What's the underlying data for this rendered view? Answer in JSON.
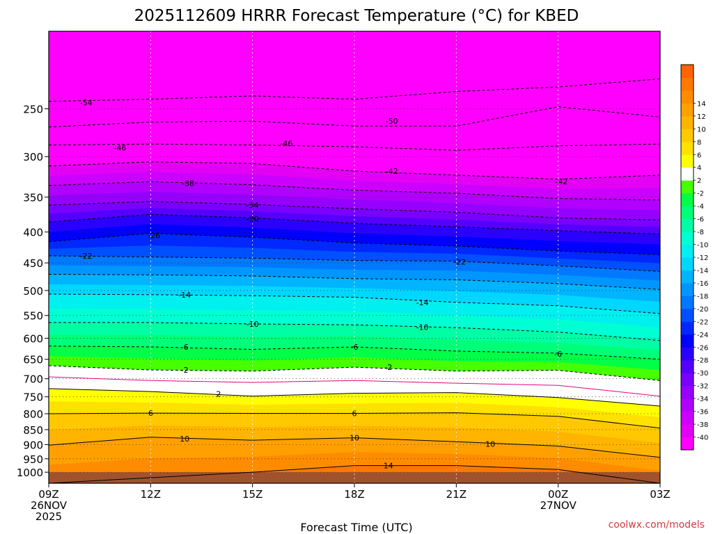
{
  "chart_data": {
    "type": "heatmap",
    "title": "2025112609 HRRR Forecast Temperature (°C) for KBED",
    "xlabel": "Forecast Time (UTC)",
    "ylabel": "",
    "credit": "coolwx.com/models",
    "y_range_hpa": [
      1043,
      186
    ],
    "x_range_hours": [
      0,
      18
    ],
    "x_ticks": [
      {
        "hour": 0,
        "lines": [
          "09Z",
          "26NOV",
          "2025"
        ]
      },
      {
        "hour": 3,
        "lines": [
          "12Z"
        ]
      },
      {
        "hour": 6,
        "lines": [
          "15Z"
        ]
      },
      {
        "hour": 9,
        "lines": [
          "18Z"
        ]
      },
      {
        "hour": 12,
        "lines": [
          "21Z"
        ]
      },
      {
        "hour": 15,
        "lines": [
          "00Z",
          "27NOV"
        ]
      },
      {
        "hour": 18,
        "lines": [
          "03Z"
        ]
      }
    ],
    "y_ticks": [
      250,
      300,
      350,
      400,
      450,
      500,
      550,
      600,
      650,
      700,
      750,
      800,
      850,
      900,
      950,
      1000
    ],
    "surface_pressure_hpa": 1000,
    "colorbar": {
      "colors": [
        "#ff00ff",
        "#e300f5",
        "#cc00ff",
        "#b100ff",
        "#9600ff",
        "#7a00ff",
        "#5500ff",
        "#2a00ff",
        "#0000ff",
        "#0028ff",
        "#0050ff",
        "#0078ff",
        "#0096ff",
        "#00b4ff",
        "#00d7ff",
        "#00f0f0",
        "#00ffd2",
        "#00ffa5",
        "#00ff78",
        "#00ff46",
        "#46ff00",
        "#ffffff",
        "#ffff00",
        "#ffe100",
        "#ffc800",
        "#ffb400",
        "#ffa000",
        "#ff8c00",
        "#ff7800",
        "#ff6400"
      ],
      "labels": [
        "-40",
        "-38",
        "-36",
        "-34",
        "-32",
        "-30",
        "-28",
        "-26",
        "-24",
        "-22",
        "-20",
        "-18",
        "-16",
        "-14",
        "-12",
        "-10",
        "-8",
        "-6",
        "-4",
        "-2",
        "2",
        "4",
        "6",
        "8",
        "10",
        "12",
        "14"
      ]
    },
    "isotherms": [
      {
        "temp": -54,
        "levels": [
          {
            "h": 0,
            "p": 243
          },
          {
            "h": 3,
            "p": 241
          },
          {
            "h": 6,
            "p": 238
          },
          {
            "h": 9,
            "p": 241
          },
          {
            "h": 12,
            "p": 234
          },
          {
            "h": 15,
            "p": 230
          },
          {
            "h": 18,
            "p": 223
          }
        ]
      },
      {
        "temp": -50,
        "levels": [
          {
            "h": 0,
            "p": 268
          },
          {
            "h": 3,
            "p": 263
          },
          {
            "h": 6,
            "p": 262
          },
          {
            "h": 9,
            "p": 267
          },
          {
            "h": 12,
            "p": 267
          },
          {
            "h": 15,
            "p": 248
          },
          {
            "h": 18,
            "p": 258
          }
        ]
      },
      {
        "temp": -46,
        "levels": [
          {
            "h": 0,
            "p": 287
          },
          {
            "h": 3,
            "p": 286
          },
          {
            "h": 6,
            "p": 287
          },
          {
            "h": 9,
            "p": 289
          },
          {
            "h": 12,
            "p": 293
          },
          {
            "h": 15,
            "p": 288
          },
          {
            "h": 18,
            "p": 286
          }
        ]
      },
      {
        "temp": -42,
        "levels": [
          {
            "h": 0,
            "p": 311
          },
          {
            "h": 3,
            "p": 306
          },
          {
            "h": 6,
            "p": 308
          },
          {
            "h": 9,
            "p": 317
          },
          {
            "h": 12,
            "p": 322
          },
          {
            "h": 15,
            "p": 327
          },
          {
            "h": 18,
            "p": 322
          }
        ]
      },
      {
        "temp": -38,
        "levels": [
          {
            "h": 0,
            "p": 335
          },
          {
            "h": 3,
            "p": 330
          },
          {
            "h": 6,
            "p": 334
          },
          {
            "h": 9,
            "p": 341
          },
          {
            "h": 12,
            "p": 345
          },
          {
            "h": 15,
            "p": 352
          },
          {
            "h": 18,
            "p": 354
          }
        ]
      },
      {
        "temp": -34,
        "levels": [
          {
            "h": 0,
            "p": 361
          },
          {
            "h": 3,
            "p": 356
          },
          {
            "h": 6,
            "p": 360
          },
          {
            "h": 9,
            "p": 366
          },
          {
            "h": 12,
            "p": 371
          },
          {
            "h": 15,
            "p": 379
          },
          {
            "h": 18,
            "p": 382
          }
        ]
      },
      {
        "temp": -30,
        "levels": [
          {
            "h": 0,
            "p": 385
          },
          {
            "h": 3,
            "p": 374
          },
          {
            "h": 6,
            "p": 379
          },
          {
            "h": 9,
            "p": 387
          },
          {
            "h": 12,
            "p": 392
          },
          {
            "h": 15,
            "p": 398
          },
          {
            "h": 18,
            "p": 403
          }
        ]
      },
      {
        "temp": -26,
        "levels": [
          {
            "h": 0,
            "p": 415
          },
          {
            "h": 3,
            "p": 402
          },
          {
            "h": 6,
            "p": 408
          },
          {
            "h": 9,
            "p": 417
          },
          {
            "h": 12,
            "p": 422
          },
          {
            "h": 15,
            "p": 430
          },
          {
            "h": 18,
            "p": 436
          }
        ]
      },
      {
        "temp": -22,
        "levels": [
          {
            "h": 0,
            "p": 438
          },
          {
            "h": 3,
            "p": 440
          },
          {
            "h": 6,
            "p": 442
          },
          {
            "h": 9,
            "p": 446
          },
          {
            "h": 12,
            "p": 447
          },
          {
            "h": 15,
            "p": 455
          },
          {
            "h": 18,
            "p": 465
          }
        ]
      },
      {
        "temp": -18,
        "levels": [
          {
            "h": 0,
            "p": 470
          },
          {
            "h": 3,
            "p": 471
          },
          {
            "h": 6,
            "p": 473
          },
          {
            "h": 9,
            "p": 478
          },
          {
            "h": 12,
            "p": 480
          },
          {
            "h": 15,
            "p": 487
          },
          {
            "h": 18,
            "p": 498
          }
        ]
      },
      {
        "temp": -14,
        "levels": [
          {
            "h": 0,
            "p": 507
          },
          {
            "h": 3,
            "p": 508
          },
          {
            "h": 6,
            "p": 510
          },
          {
            "h": 9,
            "p": 513
          },
          {
            "h": 12,
            "p": 523
          },
          {
            "h": 15,
            "p": 530
          },
          {
            "h": 18,
            "p": 546
          }
        ]
      },
      {
        "temp": -10,
        "levels": [
          {
            "h": 0,
            "p": 565
          },
          {
            "h": 3,
            "p": 565
          },
          {
            "h": 6,
            "p": 568
          },
          {
            "h": 9,
            "p": 570
          },
          {
            "h": 12,
            "p": 576
          },
          {
            "h": 15,
            "p": 586
          },
          {
            "h": 18,
            "p": 605
          }
        ]
      },
      {
        "temp": -6,
        "levels": [
          {
            "h": 0,
            "p": 618
          },
          {
            "h": 3,
            "p": 620
          },
          {
            "h": 6,
            "p": 626
          },
          {
            "h": 9,
            "p": 620
          },
          {
            "h": 12,
            "p": 630
          },
          {
            "h": 15,
            "p": 635
          },
          {
            "h": 18,
            "p": 650
          }
        ]
      },
      {
        "temp": -2,
        "levels": [
          {
            "h": 0,
            "p": 666
          },
          {
            "h": 3,
            "p": 677
          },
          {
            "h": 6,
            "p": 680
          },
          {
            "h": 9,
            "p": 670
          },
          {
            "h": 12,
            "p": 680
          },
          {
            "h": 15,
            "p": 678
          },
          {
            "h": 18,
            "p": 705
          }
        ]
      },
      {
        "temp": 0,
        "levels": [
          {
            "h": 0,
            "p": 695
          },
          {
            "h": 3,
            "p": 705
          },
          {
            "h": 6,
            "p": 710
          },
          {
            "h": 9,
            "p": 705
          },
          {
            "h": 12,
            "p": 712
          },
          {
            "h": 15,
            "p": 718
          },
          {
            "h": 18,
            "p": 748
          }
        ]
      },
      {
        "temp": 2,
        "levels": [
          {
            "h": 0,
            "p": 727
          },
          {
            "h": 3,
            "p": 735
          },
          {
            "h": 6,
            "p": 748
          },
          {
            "h": 9,
            "p": 740
          },
          {
            "h": 12,
            "p": 738
          },
          {
            "h": 15,
            "p": 752
          },
          {
            "h": 18,
            "p": 777
          }
        ]
      },
      {
        "temp": 6,
        "levels": [
          {
            "h": 0,
            "p": 800
          },
          {
            "h": 3,
            "p": 798
          },
          {
            "h": 6,
            "p": 799
          },
          {
            "h": 9,
            "p": 799
          },
          {
            "h": 12,
            "p": 797
          },
          {
            "h": 15,
            "p": 808
          },
          {
            "h": 18,
            "p": 845
          }
        ]
      },
      {
        "temp": 10,
        "levels": [
          {
            "h": 0,
            "p": 902
          },
          {
            "h": 3,
            "p": 875
          },
          {
            "h": 6,
            "p": 885
          },
          {
            "h": 9,
            "p": 877
          },
          {
            "h": 12,
            "p": 890
          },
          {
            "h": 15,
            "p": 905
          },
          {
            "h": 18,
            "p": 945
          }
        ]
      },
      {
        "temp": 14,
        "levels": [
          {
            "h": 0,
            "p": 1043
          },
          {
            "h": 6,
            "p": 1000
          },
          {
            "h": 9,
            "p": 975
          },
          {
            "h": 12,
            "p": 975
          },
          {
            "h": 15,
            "p": 990
          },
          {
            "h": 18,
            "p": 1043
          }
        ]
      }
    ],
    "contour_labels": [
      {
        "text": "-54",
        "h": 1.1,
        "p": 244
      },
      {
        "text": "-50",
        "h": 10.1,
        "p": 262
      },
      {
        "text": "-46",
        "h": 2.1,
        "p": 290
      },
      {
        "text": "-46",
        "h": 7.0,
        "p": 285
      },
      {
        "text": "-42",
        "h": 10.1,
        "p": 317
      },
      {
        "text": "-42",
        "h": 15.1,
        "p": 330
      },
      {
        "text": "-38",
        "h": 4.1,
        "p": 332
      },
      {
        "text": "-34",
        "h": 6.0,
        "p": 361
      },
      {
        "text": "-30",
        "h": 6.0,
        "p": 380
      },
      {
        "text": "-26",
        "h": 3.1,
        "p": 405
      },
      {
        "text": "-22",
        "h": 1.1,
        "p": 438
      },
      {
        "text": "-22",
        "h": 12.1,
        "p": 448
      },
      {
        "text": "-14",
        "h": 4.0,
        "p": 508
      },
      {
        "text": "-14",
        "h": 11.0,
        "p": 523
      },
      {
        "text": "-10",
        "h": 6.0,
        "p": 568
      },
      {
        "text": "-10",
        "h": 11.0,
        "p": 575
      },
      {
        "text": "-6",
        "h": 4.0,
        "p": 620
      },
      {
        "text": "-6",
        "h": 9.0,
        "p": 620
      },
      {
        "text": "-6",
        "h": 15.0,
        "p": 637
      },
      {
        "text": "-2",
        "h": 4.0,
        "p": 677
      },
      {
        "text": "-2",
        "h": 10.0,
        "p": 670
      },
      {
        "text": "2",
        "h": 5.0,
        "p": 742
      },
      {
        "text": "6",
        "h": 3.0,
        "p": 798
      },
      {
        "text": "6",
        "h": 9.0,
        "p": 799
      },
      {
        "text": "10",
        "h": 4.0,
        "p": 880
      },
      {
        "text": "10",
        "h": 9.0,
        "p": 877
      },
      {
        "text": "10",
        "h": 13.0,
        "p": 898
      },
      {
        "text": "14",
        "h": 10.0,
        "p": 975
      }
    ]
  }
}
